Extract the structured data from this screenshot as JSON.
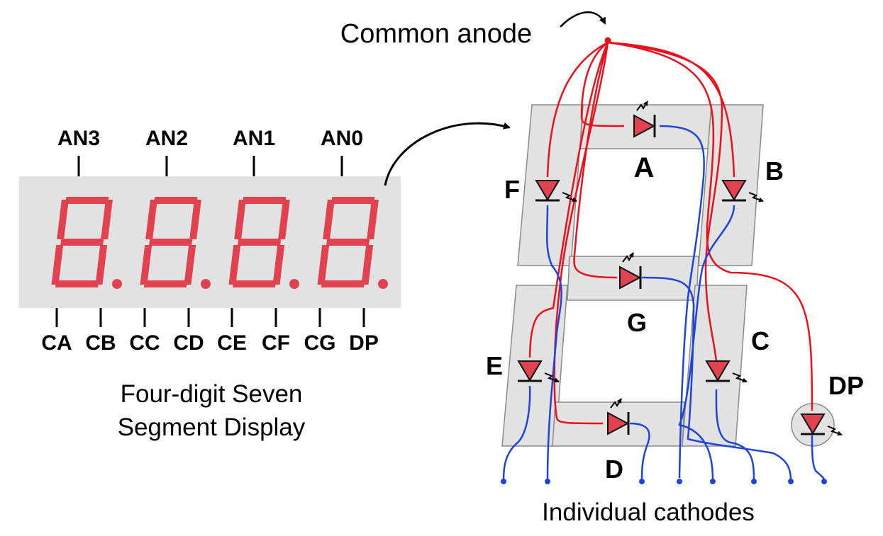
{
  "title": "",
  "anode_pins": [
    "AN3",
    "AN2",
    "AN1",
    "AN0"
  ],
  "cathode_pins": [
    "CA",
    "CB",
    "CC",
    "CD",
    "CE",
    "CF",
    "CG",
    "DP"
  ],
  "display_caption_line1": "Four-digit Seven",
  "display_caption_line2": "Segment Display",
  "common_anode_label": "Common anode",
  "individual_cathodes_label": "Individual cathodes",
  "segments": [
    {
      "id": "A",
      "label": "A"
    },
    {
      "id": "B",
      "label": "B"
    },
    {
      "id": "C",
      "label": "C"
    },
    {
      "id": "D",
      "label": "D"
    },
    {
      "id": "E",
      "label": "E"
    },
    {
      "id": "F",
      "label": "F"
    },
    {
      "id": "G",
      "label": "G"
    },
    {
      "id": "DP",
      "label": "DP"
    }
  ],
  "colors": {
    "segment_red": "#e0434f",
    "led_red": "#e0434f",
    "anode_wire": "#e8111c",
    "cathode_wire": "#1f45d6",
    "panel_gray": "#e2e2e2",
    "panel_stroke": "#8a8a8a"
  }
}
